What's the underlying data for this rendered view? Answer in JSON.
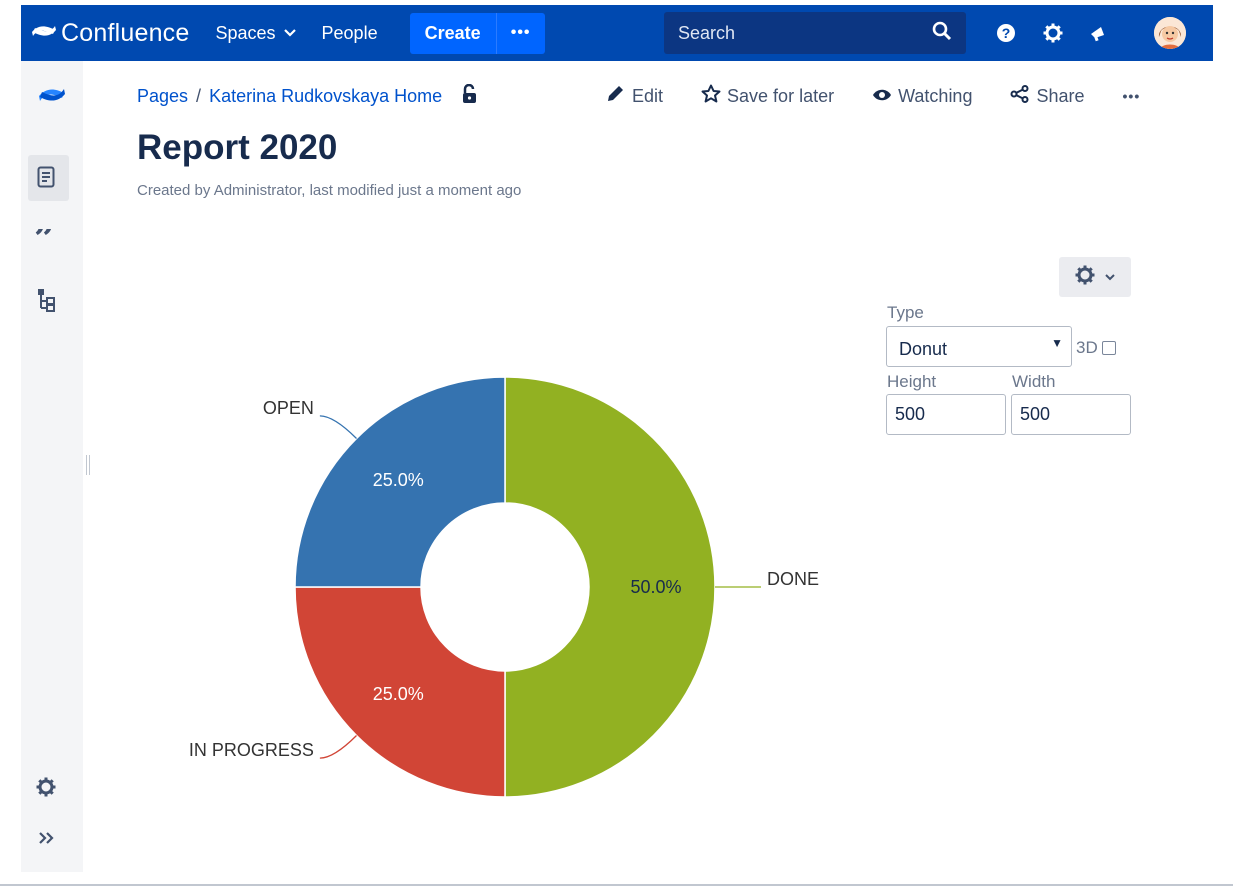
{
  "nav": {
    "brand": "Confluence",
    "spaces": "Spaces",
    "people": "People",
    "create": "Create",
    "more": "•••",
    "search_placeholder": "Search"
  },
  "breadcrumb": {
    "pages": "Pages",
    "separator": "/",
    "home": "Katerina Rudkovskaya Home"
  },
  "actions": {
    "edit": "Edit",
    "save_for_later": "Save for later",
    "watching": "Watching",
    "share": "Share",
    "more": "•••"
  },
  "page": {
    "title": "Report 2020",
    "byline": "Created by Administrator, last modified just a moment ago"
  },
  "chart_config": {
    "type_label": "Type",
    "type_value": "Donut",
    "three_d_label": "3D",
    "three_d_checked": false,
    "height_label": "Height",
    "height_value": "500",
    "width_label": "Width",
    "width_value": "500"
  },
  "chart_data": {
    "type": "pie",
    "variant": "donut",
    "categories": [
      "DONE",
      "IN PROGRESS",
      "OPEN"
    ],
    "values": [
      50.0,
      25.0,
      25.0
    ],
    "value_labels": [
      "50.0%",
      "25.0%",
      "25.0%"
    ],
    "colors": [
      "#92b122",
      "#d14536",
      "#3573b0"
    ],
    "legend": "outer labels"
  }
}
